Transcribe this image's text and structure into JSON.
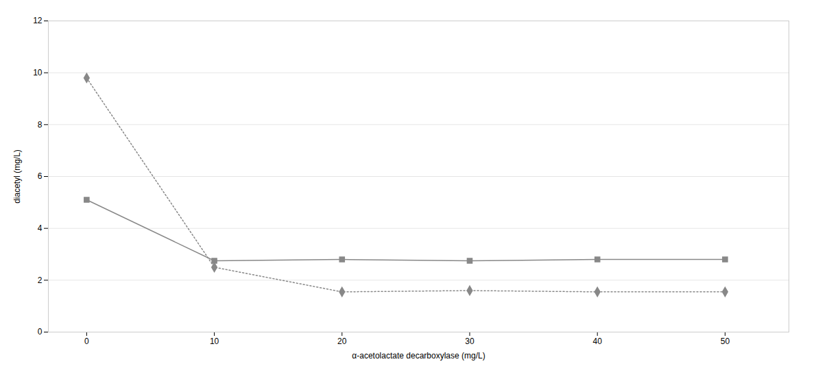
{
  "chart_data": {
    "type": "line",
    "xlabel": "α-acetolactate decarboxylase (mg/L)",
    "ylabel": "diacetyl (mg/L)",
    "x": [
      0,
      10,
      20,
      30,
      40,
      50
    ],
    "series": [
      {
        "values": [
          5.1,
          2.75,
          2.8,
          2.75,
          2.8,
          2.8
        ],
        "color": "#888888",
        "marker": "square",
        "line_style": "solid"
      },
      {
        "values": [
          9.8,
          2.5,
          1.55,
          1.6,
          1.55,
          1.55
        ],
        "color": "#888888",
        "marker": "diamond",
        "line_style": "dotted"
      }
    ],
    "xlim": [
      -3,
      55
    ],
    "ylim": [
      0,
      12
    ],
    "xticks": [
      0,
      10,
      20,
      30,
      40,
      50
    ],
    "yticks": [
      0,
      2,
      4,
      6,
      8,
      10,
      12
    ],
    "grid": true
  }
}
